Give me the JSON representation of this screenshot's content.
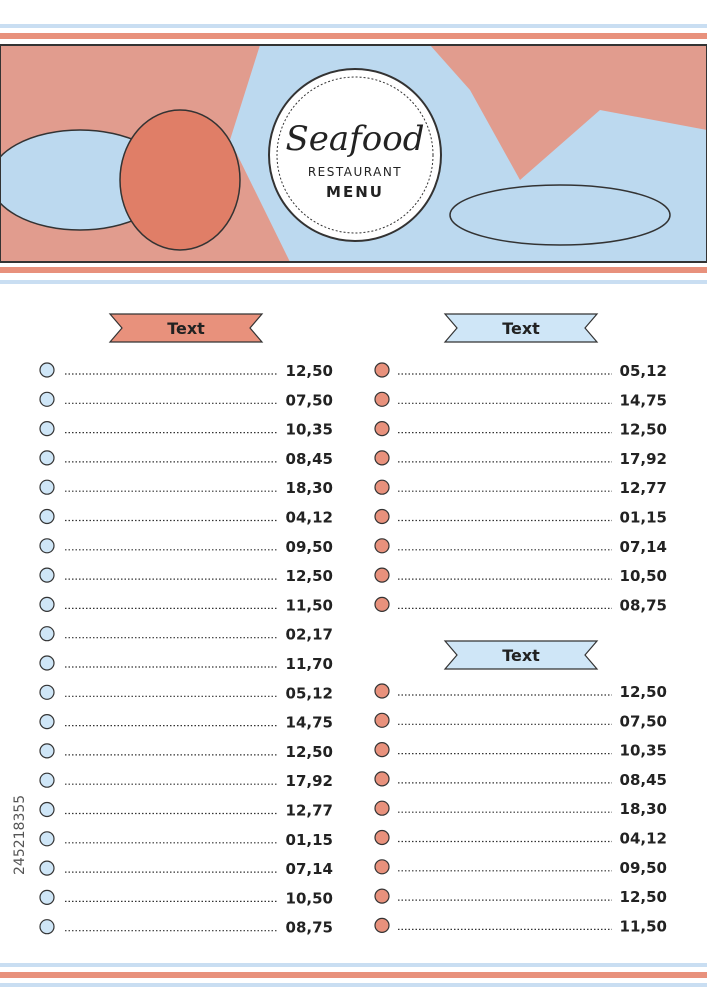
{
  "header": {
    "title": "Seafood",
    "subtitle": "RESTAURANT",
    "menu_label": "MENU"
  },
  "watermark": "245218355",
  "sections": [
    {
      "heading": "Text",
      "prices": [
        "12,50",
        "07,50",
        "10,35",
        "08,45",
        "18,30",
        "04,12",
        "09,50",
        "12,50",
        "11,50",
        "02,17",
        "11,70",
        "05,12",
        "14,75",
        "12,50",
        "17,92",
        "12,77",
        "01,15",
        "07,14",
        "10,50",
        "08,75"
      ]
    },
    {
      "heading": "Text",
      "prices": [
        "05,12",
        "14,75",
        "12,50",
        "17,92",
        "12,77",
        "01,15",
        "07,14",
        "10,50",
        "08,75"
      ]
    },
    {
      "heading": "Text",
      "prices": [
        "12,50",
        "07,50",
        "10,35",
        "08,45",
        "18,30",
        "04,12",
        "09,50",
        "12,50",
        "11,50"
      ]
    }
  ]
}
